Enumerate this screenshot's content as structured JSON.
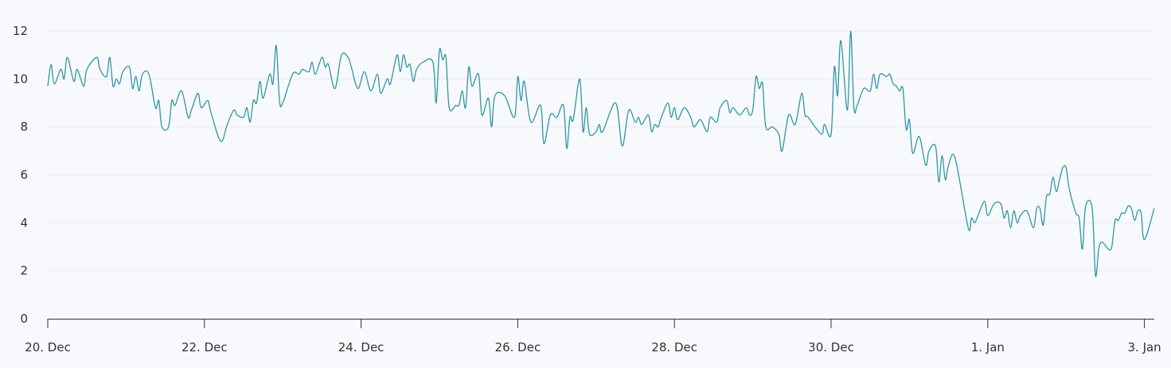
{
  "chart_data": {
    "type": "line",
    "title": "",
    "xlabel": "",
    "ylabel": "",
    "ylim": [
      0,
      12
    ],
    "y_ticks": [
      "0",
      "2",
      "4",
      "6",
      "8",
      "10",
      "12"
    ],
    "x_ticks": [
      {
        "label": "20. Dec",
        "date": "12-20"
      },
      {
        "label": "22. Dec",
        "date": "12-22"
      },
      {
        "label": "24. Dec",
        "date": "12-24"
      },
      {
        "label": "26. Dec",
        "date": "12-26"
      },
      {
        "label": "28. Dec",
        "date": "12-28"
      },
      {
        "label": "30. Dec",
        "date": "12-30"
      },
      {
        "label": "1. Jan",
        "date": "01-01"
      },
      {
        "label": "3. Jan",
        "date": "01-03"
      }
    ],
    "grid": true,
    "line_color": "#2e96a8",
    "series": [
      {
        "points": [
          [
            "12-20 00:00",
            9.7
          ],
          [
            "12-20 01:00",
            10.6
          ],
          [
            "12-20 02:00",
            9.8
          ],
          [
            "12-20 04:00",
            10.4
          ],
          [
            "12-20 05:00",
            10.0
          ],
          [
            "12-20 06:00",
            10.9
          ],
          [
            "12-20 08:00",
            9.9
          ],
          [
            "12-20 09:00",
            10.4
          ],
          [
            "12-20 11:00",
            9.7
          ],
          [
            "12-20 12:00",
            10.4
          ],
          [
            "12-20 15:00",
            10.9
          ],
          [
            "12-20 16:00",
            10.4
          ],
          [
            "12-20 18:00",
            10.1
          ],
          [
            "12-20 19:00",
            10.9
          ],
          [
            "12-20 20:00",
            9.7
          ],
          [
            "12-20 21:00",
            10.0
          ],
          [
            "12-20 22:00",
            9.8
          ],
          [
            "12-20 23:00",
            10.3
          ],
          [
            "12-21 01:00",
            10.5
          ],
          [
            "12-21 02:00",
            9.6
          ],
          [
            "12-21 03:00",
            10.1
          ],
          [
            "12-21 04:00",
            9.5
          ],
          [
            "12-21 05:00",
            10.2
          ],
          [
            "12-21 07:00",
            10.2
          ],
          [
            "12-21 09:00",
            8.8
          ],
          [
            "12-21 10:00",
            9.1
          ],
          [
            "12-21 11:00",
            8.0
          ],
          [
            "12-21 13:00",
            8.0
          ],
          [
            "12-21 14:00",
            9.1
          ],
          [
            "12-21 15:00",
            8.9
          ],
          [
            "12-21 17:00",
            9.5
          ],
          [
            "12-21 19:00",
            8.4
          ],
          [
            "12-21 20:00",
            8.7
          ],
          [
            "12-21 22:00",
            9.4
          ],
          [
            "12-21 23:00",
            8.8
          ],
          [
            "12-22 01:00",
            9.1
          ],
          [
            "12-22 02:00",
            8.6
          ],
          [
            "12-22 05:00",
            7.4
          ],
          [
            "12-22 07:00",
            8.1
          ],
          [
            "12-22 09:00",
            8.7
          ],
          [
            "12-22 10:00",
            8.5
          ],
          [
            "12-22 12:00",
            8.4
          ],
          [
            "12-22 13:00",
            8.8
          ],
          [
            "12-22 14:00",
            8.2
          ],
          [
            "12-22 15:00",
            9.1
          ],
          [
            "12-22 16:00",
            9.0
          ],
          [
            "12-22 17:00",
            9.9
          ],
          [
            "12-22 18:00",
            9.2
          ],
          [
            "12-22 20:00",
            10.2
          ],
          [
            "12-22 21:00",
            9.8
          ],
          [
            "12-22 22:00",
            11.4
          ],
          [
            "12-22 23:00",
            9.1
          ],
          [
            "12-23 00:00",
            9.0
          ],
          [
            "12-23 03:00",
            10.2
          ],
          [
            "12-23 05:00",
            10.2
          ],
          [
            "12-23 06:00",
            10.4
          ],
          [
            "12-23 08:00",
            10.3
          ],
          [
            "12-23 09:00",
            10.7
          ],
          [
            "12-23 10:00",
            10.2
          ],
          [
            "12-23 12:00",
            10.9
          ],
          [
            "12-23 13:00",
            10.5
          ],
          [
            "12-23 14:00",
            10.6
          ],
          [
            "12-23 16:00",
            9.6
          ],
          [
            "12-23 18:00",
            11.0
          ],
          [
            "12-23 20:00",
            10.9
          ],
          [
            "12-23 21:00",
            10.5
          ],
          [
            "12-23 23:00",
            9.6
          ],
          [
            "12-24 01:00",
            10.3
          ],
          [
            "12-24 03:00",
            9.5
          ],
          [
            "12-24 05:00",
            10.2
          ],
          [
            "12-24 06:00",
            9.4
          ],
          [
            "12-24 08:00",
            10.0
          ],
          [
            "12-24 09:00",
            9.8
          ],
          [
            "12-24 11:00",
            11.0
          ],
          [
            "12-24 12:00",
            10.3
          ],
          [
            "12-24 13:00",
            11.0
          ],
          [
            "12-24 14:00",
            10.5
          ],
          [
            "12-24 15:00",
            10.6
          ],
          [
            "12-24 16:00",
            9.9
          ],
          [
            "12-24 17:00",
            10.4
          ],
          [
            "12-24 19:00",
            10.7
          ],
          [
            "12-24 22:00",
            10.7
          ],
          [
            "12-24 23:00",
            9.0
          ],
          [
            "12-25 00:00",
            11.2
          ],
          [
            "12-25 01:00",
            10.8
          ],
          [
            "12-25 02:00",
            10.9
          ],
          [
            "12-25 03:00",
            8.8
          ],
          [
            "12-25 05:00",
            8.9
          ],
          [
            "12-25 06:00",
            8.9
          ],
          [
            "12-25 07:00",
            9.5
          ],
          [
            "12-25 08:00",
            8.8
          ],
          [
            "12-25 09:00",
            10.5
          ],
          [
            "12-25 10:00",
            9.7
          ],
          [
            "12-25 12:00",
            10.2
          ],
          [
            "12-25 13:00",
            8.5
          ],
          [
            "12-25 15:00",
            9.2
          ],
          [
            "12-25 16:00",
            8.0
          ],
          [
            "12-25 17:00",
            9.3
          ],
          [
            "12-25 20:00",
            9.3
          ],
          [
            "12-25 23:00",
            8.4
          ],
          [
            "12-26 00:00",
            10.1
          ],
          [
            "12-26 01:00",
            9.1
          ],
          [
            "12-26 02:00",
            9.9
          ],
          [
            "12-26 04:00",
            8.2
          ],
          [
            "12-26 07:00",
            8.9
          ],
          [
            "12-26 08:00",
            7.3
          ],
          [
            "12-26 10:00",
            8.5
          ],
          [
            "12-26 12:00",
            8.4
          ],
          [
            "12-26 14:00",
            8.9
          ],
          [
            "12-26 15:00",
            7.1
          ],
          [
            "12-26 16:00",
            8.4
          ],
          [
            "12-26 17:00",
            8.3
          ],
          [
            "12-26 19:00",
            10.0
          ],
          [
            "12-26 20:00",
            7.8
          ],
          [
            "12-26 21:00",
            8.8
          ],
          [
            "12-26 22:00",
            7.7
          ],
          [
            "12-27 00:00",
            7.8
          ],
          [
            "12-27 01:00",
            8.1
          ],
          [
            "12-27 02:00",
            7.8
          ],
          [
            "12-27 06:00",
            9.0
          ],
          [
            "12-27 08:00",
            7.2
          ],
          [
            "12-27 10:00",
            8.7
          ],
          [
            "12-27 12:00",
            8.2
          ],
          [
            "12-27 13:00",
            8.4
          ],
          [
            "12-27 14:00",
            8.1
          ],
          [
            "12-27 16:00",
            8.5
          ],
          [
            "12-27 17:00",
            7.8
          ],
          [
            "12-27 18:00",
            8.1
          ],
          [
            "12-27 19:00",
            8.0
          ],
          [
            "12-27 20:00",
            8.4
          ],
          [
            "12-27 22:00",
            9.0
          ],
          [
            "12-27 23:00",
            8.4
          ],
          [
            "12-28 00:00",
            8.8
          ],
          [
            "12-28 01:00",
            8.3
          ],
          [
            "12-28 03:00",
            8.8
          ],
          [
            "12-28 05:00",
            8.4
          ],
          [
            "12-28 06:00",
            8.0
          ],
          [
            "12-28 08:00",
            8.3
          ],
          [
            "12-28 10:00",
            7.8
          ],
          [
            "12-28 11:00",
            8.4
          ],
          [
            "12-28 13:00",
            8.2
          ],
          [
            "12-28 14:00",
            8.8
          ],
          [
            "12-28 16:00",
            9.1
          ],
          [
            "12-28 17:00",
            8.6
          ],
          [
            "12-28 18:00",
            8.8
          ],
          [
            "12-28 20:00",
            8.5
          ],
          [
            "12-28 22:00",
            8.8
          ],
          [
            "12-28 23:00",
            8.5
          ],
          [
            "12-29 00:00",
            8.7
          ],
          [
            "12-29 01:00",
            10.1
          ],
          [
            "12-29 02:00",
            9.6
          ],
          [
            "12-29 03:00",
            9.8
          ],
          [
            "12-29 04:00",
            8.0
          ],
          [
            "12-29 06:00",
            8.0
          ],
          [
            "12-29 08:00",
            7.7
          ],
          [
            "12-29 09:00",
            7.0
          ],
          [
            "12-29 11:00",
            8.5
          ],
          [
            "12-29 13:00",
            8.1
          ],
          [
            "12-29 15:00",
            9.4
          ],
          [
            "12-29 16:00",
            8.5
          ],
          [
            "12-29 17:00",
            8.4
          ],
          [
            "12-29 21:00",
            7.7
          ],
          [
            "12-29 22:00",
            8.1
          ],
          [
            "12-30 00:00",
            7.7
          ],
          [
            "12-30 01:00",
            10.5
          ],
          [
            "12-30 02:00",
            9.3
          ],
          [
            "12-30 03:00",
            11.6
          ],
          [
            "12-30 05:00",
            8.7
          ],
          [
            "12-30 06:00",
            12.0
          ],
          [
            "12-30 07:00",
            8.8
          ],
          [
            "12-30 08:00",
            8.9
          ],
          [
            "12-30 10:00",
            9.6
          ],
          [
            "12-30 12:00",
            9.5
          ],
          [
            "12-30 13:00",
            10.2
          ],
          [
            "12-30 14:00",
            9.6
          ],
          [
            "12-30 15:00",
            10.2
          ],
          [
            "12-30 17:00",
            10.1
          ],
          [
            "12-30 18:00",
            10.2
          ],
          [
            "12-30 19:00",
            9.8
          ],
          [
            "12-30 20:00",
            9.7
          ],
          [
            "12-30 21:00",
            9.5
          ],
          [
            "12-30 22:00",
            9.6
          ],
          [
            "12-30 23:00",
            7.9
          ],
          [
            "12-31 00:00",
            8.3
          ],
          [
            "12-31 01:00",
            6.9
          ],
          [
            "12-31 03:00",
            7.6
          ],
          [
            "12-31 05:00",
            6.4
          ],
          [
            "12-31 06:00",
            7.0
          ],
          [
            "12-31 08:00",
            7.2
          ],
          [
            "12-31 09:00",
            5.7
          ],
          [
            "12-31 10:00",
            6.8
          ],
          [
            "12-31 11:00",
            5.8
          ],
          [
            "12-31 12:00",
            6.4
          ],
          [
            "12-31 14:00",
            6.7
          ],
          [
            "12-31 18:00",
            3.8
          ],
          [
            "12-31 19:00",
            4.2
          ],
          [
            "12-31 20:00",
            4.0
          ],
          [
            "12-31 21:00",
            4.3
          ],
          [
            "12-31 23:00",
            4.9
          ],
          [
            "01-01 00:00",
            4.3
          ],
          [
            "01-01 02:00",
            4.8
          ],
          [
            "01-01 04:00",
            4.8
          ],
          [
            "01-01 05:00",
            4.2
          ],
          [
            "01-01 06:00",
            4.5
          ],
          [
            "01-01 07:00",
            3.8
          ],
          [
            "01-01 08:00",
            4.5
          ],
          [
            "01-01 09:00",
            4.0
          ],
          [
            "01-01 10:00",
            4.3
          ],
          [
            "01-01 12:00",
            4.5
          ],
          [
            "01-01 14:00",
            3.8
          ],
          [
            "01-01 15:00",
            4.6
          ],
          [
            "01-01 16:00",
            4.6
          ],
          [
            "01-01 17:00",
            3.9
          ],
          [
            "01-01 18:00",
            5.1
          ],
          [
            "01-01 19:00",
            5.2
          ],
          [
            "01-01 20:00",
            5.9
          ],
          [
            "01-01 21:00",
            5.3
          ],
          [
            "01-01 22:00",
            5.8
          ],
          [
            "01-01 23:00",
            6.3
          ],
          [
            "01-02 00:00",
            6.3
          ],
          [
            "01-02 01:00",
            5.4
          ],
          [
            "01-02 03:00",
            4.4
          ],
          [
            "01-02 04:00",
            4.2
          ],
          [
            "01-02 05:00",
            2.9
          ],
          [
            "01-02 06:00",
            4.7
          ],
          [
            "01-02 08:00",
            4.6
          ],
          [
            "01-02 09:00",
            1.8
          ],
          [
            "01-02 10:00",
            2.9
          ],
          [
            "01-02 11:00",
            3.2
          ],
          [
            "01-02 13:00",
            2.9
          ],
          [
            "01-02 14:00",
            3.0
          ],
          [
            "01-02 15:00",
            4.1
          ],
          [
            "01-02 16:00",
            4.1
          ],
          [
            "01-02 17:00",
            4.4
          ],
          [
            "01-02 18:00",
            4.4
          ],
          [
            "01-02 19:00",
            4.7
          ],
          [
            "01-02 20:00",
            4.6
          ],
          [
            "01-02 21:00",
            4.1
          ],
          [
            "01-02 22:00",
            4.5
          ],
          [
            "01-02 23:00",
            4.4
          ],
          [
            "01-03 00:00",
            3.3
          ],
          [
            "01-03 03:00",
            4.6
          ]
        ]
      }
    ]
  }
}
